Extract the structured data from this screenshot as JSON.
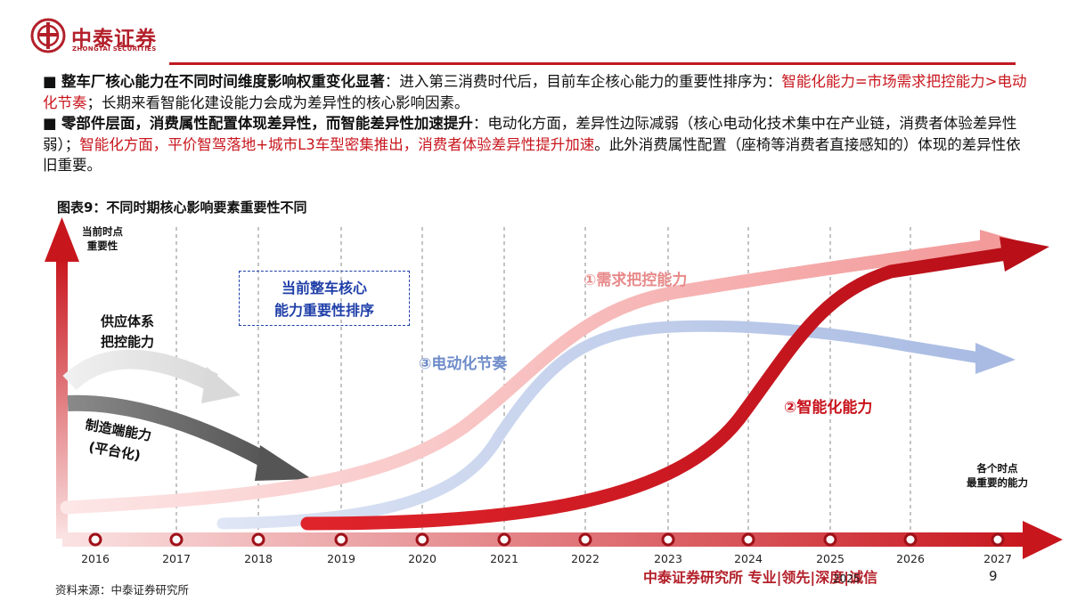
{
  "header": {
    "logo_cn": "中泰证券",
    "logo_en": "ZHONGTAI SECURITIES"
  },
  "bullets": {
    "b1_marker": "■",
    "b1_bold": "整车厂核心能力在不同时间维度影响权重变化显著",
    "b1_rest": "：进入第三消费时代后，目前车企核心能力的重要性排序为：",
    "b1_red": "智能化能力=市场需求把控能力>电动化节奏",
    "b1_tail": "；长期来看智能化建设能力会成为差异性的核心影响因素。",
    "b2_marker": "■",
    "b2_bold": "零部件层面，消费属性配置体现差异性，而智能差异性加速提升",
    "b2_rest": "：电动化方面，差异性边际减弱（核心电动化技术集中在产业链，消费者体验差异性弱）；",
    "b2_red": "智能化方面，平价智驾落地+城市L3车型密集推出，消费者体验差异性提升加速",
    "b2_tail": "。此外消费属性配置（座椅等消费者直接感知的）体现的差异性依旧重要。"
  },
  "figure": {
    "title": "图表9：不同时期核心影响要素重要性不同",
    "y_axis_label_line1": "当前时点",
    "y_axis_label_line2": "重要性",
    "right_label_line1": "各个时点",
    "right_label_line2": "最重要的能力",
    "box_line1": "当前整车核心",
    "box_line2": "能力重要性排序",
    "supply_line1": "供应体系",
    "supply_line2": "把控能力",
    "mfg_line1": "制造端能力",
    "mfg_line2": "(平台化)",
    "demand_label": "①需求把控能力",
    "electric_label": "③电动化节奏",
    "smart_label": "②智能化能力",
    "years": [
      "2016",
      "2017",
      "2018",
      "2019",
      "2020",
      "2021",
      "2022",
      "2023",
      "2024",
      "2025",
      "2026",
      "2027"
    ],
    "overlay_year": "2025",
    "colors": {
      "demand": "#f3a9a9",
      "electric": "#b7c6e6",
      "smart": "#c8121b",
      "supply": "#e2e2e2",
      "mfg": "#6b6b6b",
      "axis": "#c8161d"
    }
  },
  "footer": {
    "source": "资料来源：中泰证券研究所",
    "brand": "中泰证券研究所 专业|领先|深度|诚信",
    "page": "9"
  }
}
